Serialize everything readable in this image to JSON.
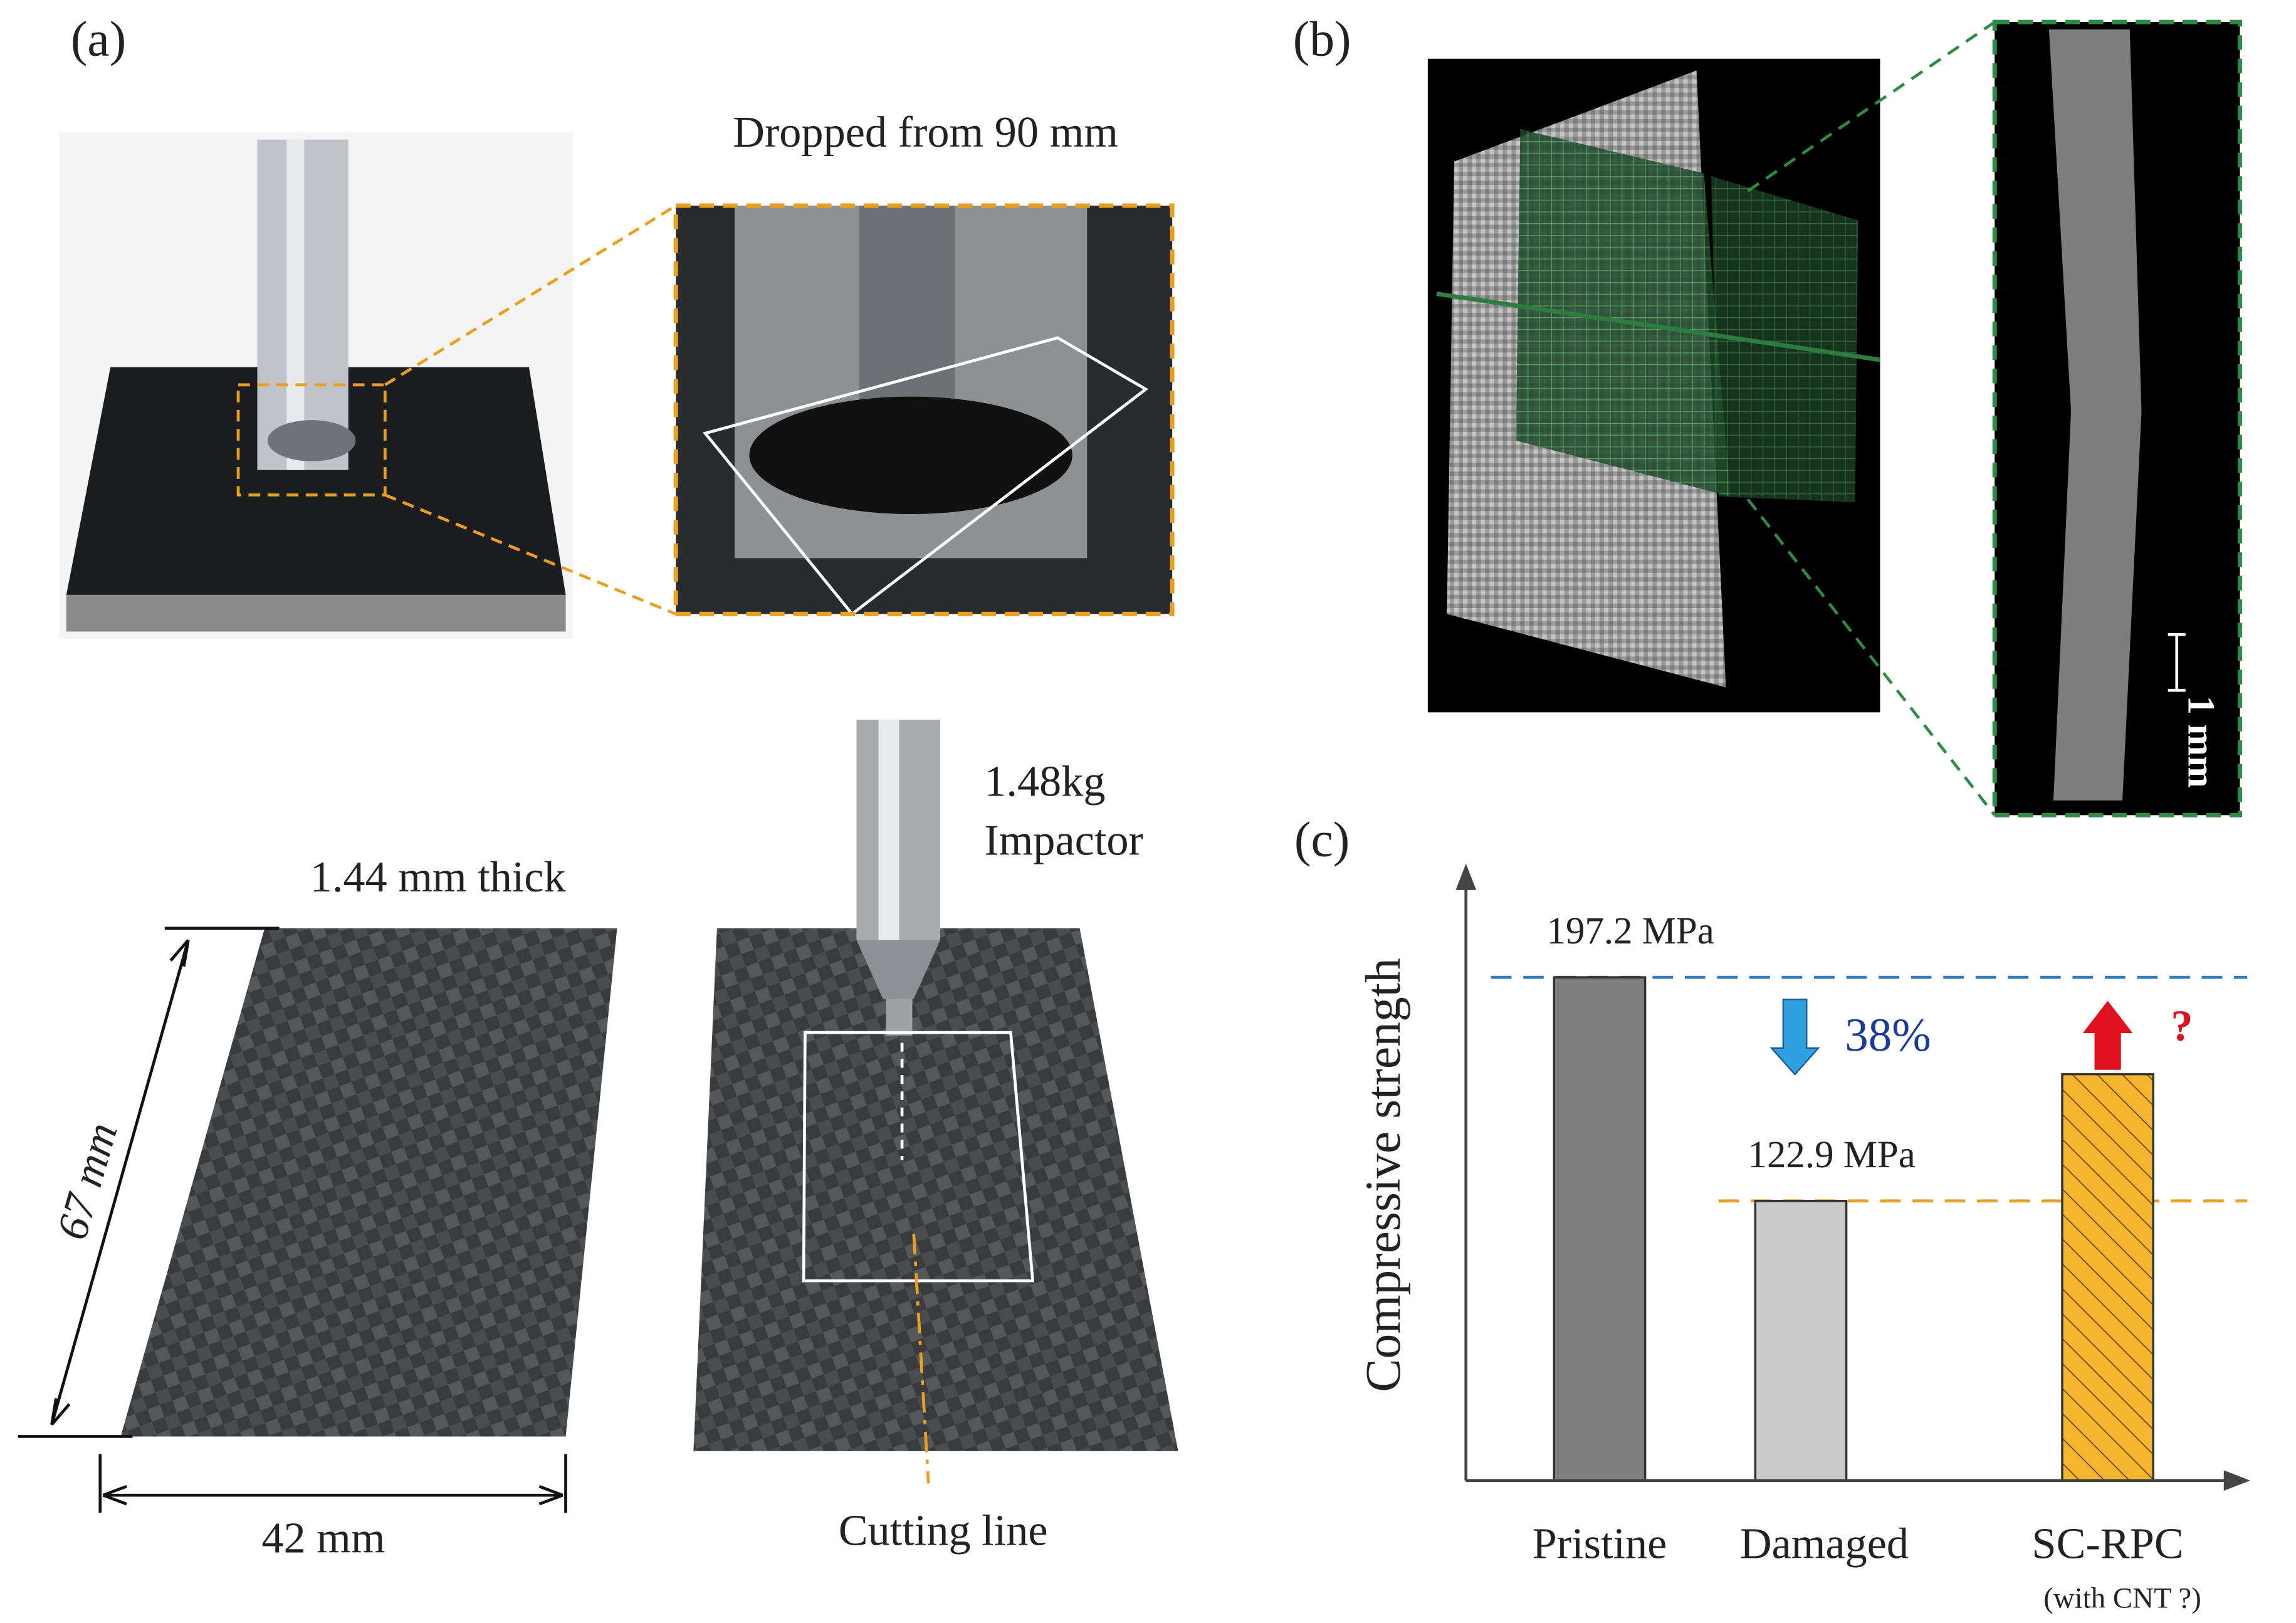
{
  "panel_a": {
    "label": "(a)",
    "drop_height": "Dropped from 90 mm",
    "mass": "1.48kg",
    "impactor": "Impactor",
    "thickness": "1.44 mm thick",
    "length": "67 mm",
    "width": "42 mm",
    "cutting_line": "Cutting line"
  },
  "panel_b": {
    "label": "(b)",
    "scale_bar": "1 mm"
  },
  "chart_data": {
    "type": "bar",
    "label": "(c)",
    "y_label": "Compressive strength",
    "categories": [
      "Pristine",
      "Damaged",
      "SC-RPC"
    ],
    "category_notes": [
      null,
      null,
      "(with CNT ?)"
    ],
    "values": [
      197.2,
      122.9,
      165
    ],
    "value_labels": [
      "197.2 MPa",
      "122.9 MPa",
      null
    ],
    "colors": [
      "#7f7f7f",
      "#c9c9c9",
      "#f5b52e"
    ],
    "hatched": [
      false,
      false,
      true
    ],
    "reference_line_colors": [
      "#2d7cc0",
      "#e9a020",
      null
    ],
    "ylim": [
      30,
      234
    ],
    "decrease_label": "38%",
    "increase_label": "?",
    "decrease_color": "#2fa0e0",
    "increase_color": "#e0101e"
  }
}
